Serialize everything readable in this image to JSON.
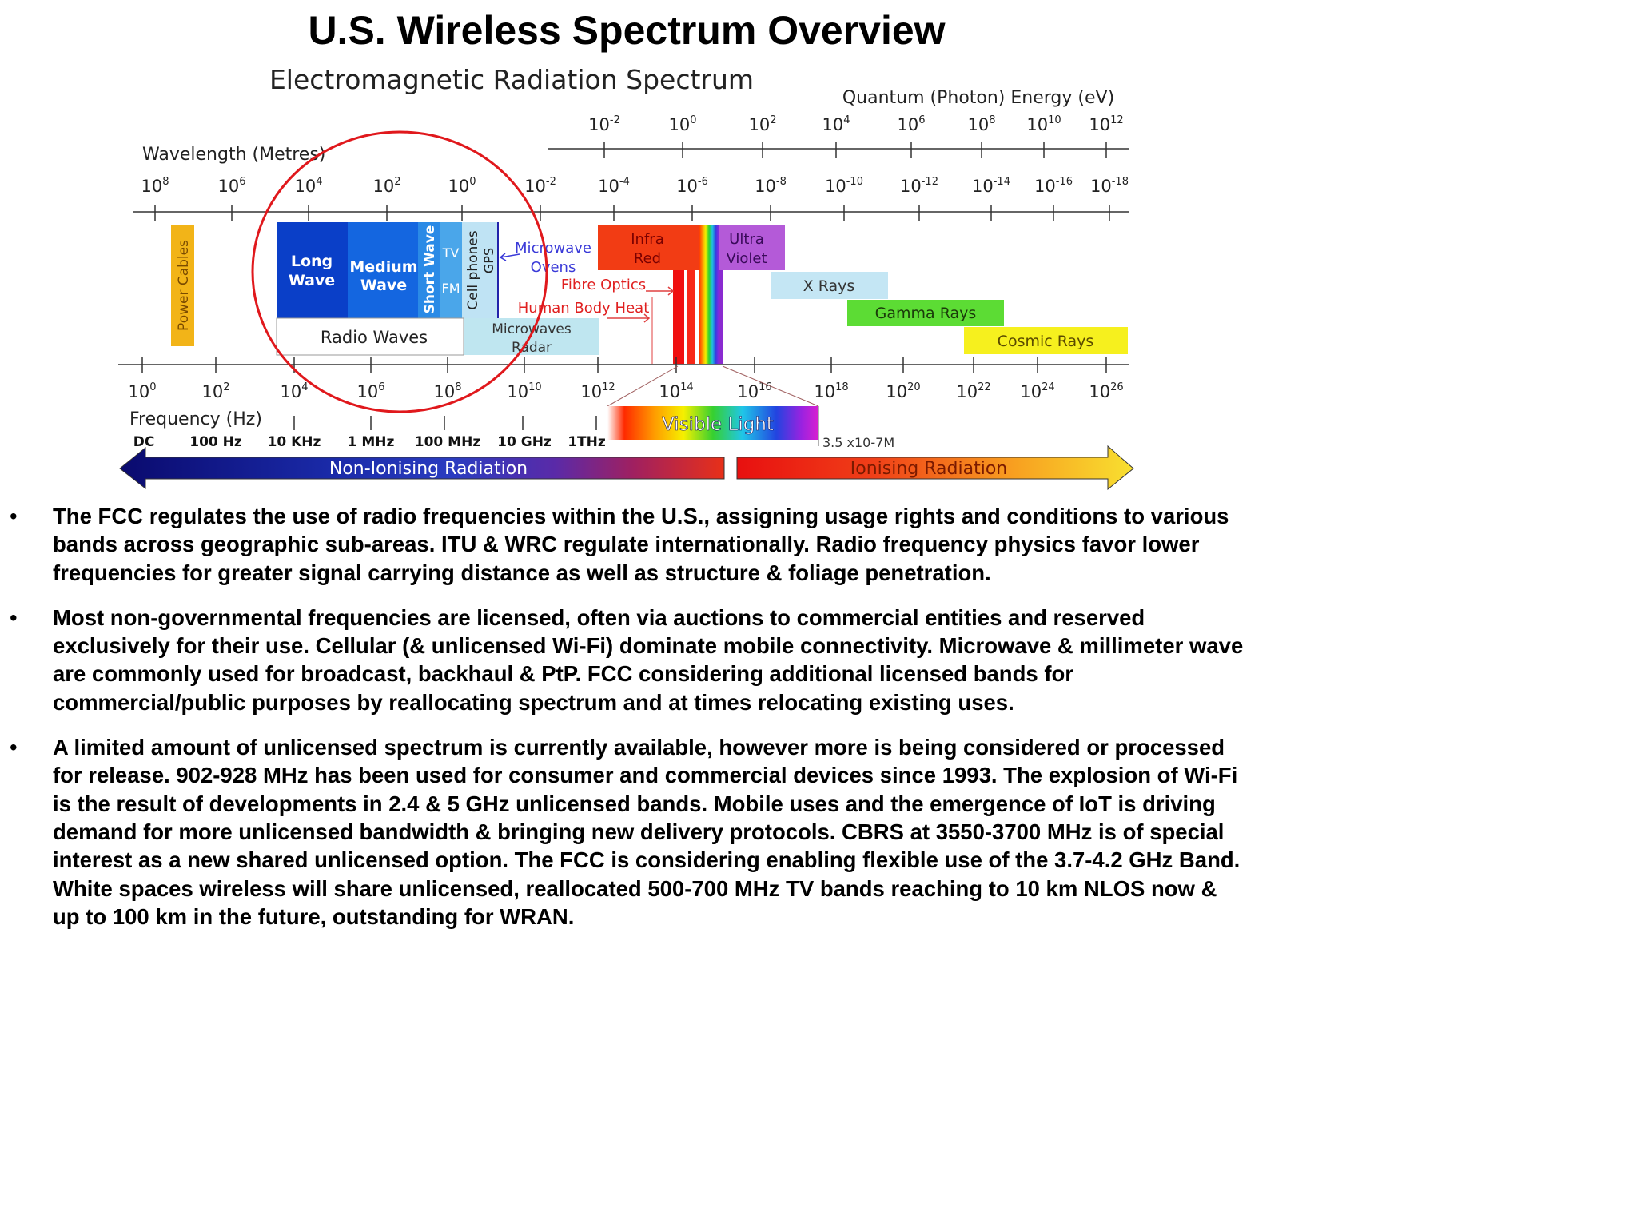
{
  "title": "U.S. Wireless Spectrum Overview",
  "diagram": {
    "title": "Electromagnetic Radiation Spectrum",
    "energy_axis": {
      "label": "Quantum (Photon) Energy (eV)",
      "ticks": [
        "10-2",
        "100",
        "102",
        "104",
        "106",
        "108",
        "1010",
        "1012"
      ]
    },
    "wavelength_axis": {
      "label": "Wavelength (Metres)",
      "ticks": [
        "108",
        "106",
        "104",
        "102",
        "100",
        "10-2",
        "10-4",
        "10-6",
        "10-8",
        "10-10",
        "10-12",
        "10-14",
        "10-16",
        "10-18"
      ]
    },
    "frequency_axis": {
      "label": "Frequency (Hz)",
      "ticks": [
        "100",
        "102",
        "104",
        "106",
        "108",
        "1010",
        "1012",
        "1014",
        "1016",
        "1018",
        "1020",
        "1022",
        "1024",
        "1026"
      ]
    },
    "frequency_markers": [
      "DC",
      "100 Hz",
      "10 KHz",
      "1 MHz",
      "100 MHz",
      "10 GHz",
      "1THz"
    ],
    "bands": {
      "power_cables": "Power Cables",
      "long_wave": [
        "Long",
        "Wave"
      ],
      "medium_wave": [
        "Medium",
        "Wave"
      ],
      "short_wave": "Short Wave",
      "tv": "TV",
      "fm": "FM",
      "cell_phones": "Cell phones",
      "gps": "GPS",
      "radio_waves": "Radio Waves",
      "microwave_ovens": [
        "Microwave",
        "Ovens"
      ],
      "microwaves_radar": [
        "Microwaves",
        "Radar"
      ],
      "fibre_optics": "Fibre Optics",
      "human_body_heat": "Human Body Heat",
      "infra_red": [
        "Infra",
        "Red"
      ],
      "ultra_violet": [
        "Ultra",
        "Violet"
      ],
      "x_rays": "X Rays",
      "gamma_rays": "Gamma Rays",
      "cosmic_rays": "Cosmic Rays",
      "visible_light": "Visible Light",
      "visible_wavelength": "3.5 x10-7M"
    },
    "radiation": {
      "non_ionising": "Non-Ionising Radiation",
      "ionising": "Ionising Radiation"
    },
    "colors": {
      "radio_band": "#0a3fc8",
      "medium_band": "#1466e0",
      "light_band": "#4aa6ea",
      "infra_red": "#f23c14",
      "ultra_violet": "#b45ad8",
      "x_rays": "#c4e6f4",
      "gamma_rays": "#5cdc34",
      "cosmic_rays": "#f6f01e",
      "power_cables": "#f2b418",
      "highlight_circle": "#e0181c"
    }
  },
  "bullets": [
    "The FCC regulates the use of radio frequencies within the U.S., assigning usage rights and conditions to various bands across geographic sub-areas. ITU & WRC regulate internationally. Radio frequency physics favor lower frequencies for greater signal carrying distance as well as structure & foliage penetration.",
    "Most non-governmental frequencies are licensed, often via auctions to commercial entities and reserved exclusively for their use. Cellular (& unlicensed Wi-Fi) dominate mobile connectivity. Microwave & millimeter wave are commonly used for broadcast, backhaul & PtP. FCC considering additional licensed bands for commercial/public purposes by reallocating spectrum and at times relocating existing uses.",
    "A limited amount of unlicensed spectrum is currently available, however more is being considered or processed for release. 902-928 MHz has been used for consumer and commercial devices since 1993. The explosion of Wi-Fi is the result of developments in 2.4 & 5 GHz unlicensed bands. Mobile uses and the emergence of IoT is driving demand for more unlicensed bandwidth & bringing new delivery protocols. CBRS at 3550-3700 MHz is of special interest as a new shared unlicensed option. The FCC is considering enabling flexible use of the 3.7-4.2 GHz Band. White spaces wireless will share unlicensed, reallocated 500-700 MHz TV bands reaching to 10 km NLOS now & up to 100 km in the future, outstanding for WRAN."
  ],
  "bullet_symbol": "•"
}
